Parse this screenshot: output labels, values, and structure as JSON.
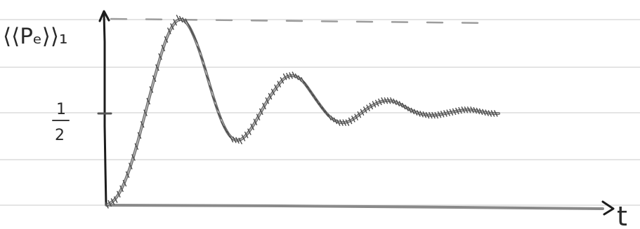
{
  "chart_data": {
    "type": "line",
    "title": "",
    "ylabel": "⟨⟨Pₑ⟩⟩₁",
    "xlabel": "t",
    "ylim": [
      0,
      1.2
    ],
    "xlim": [
      0,
      12
    ],
    "grid": false,
    "y_ticks": [
      {
        "value": 0.5,
        "label": "1/2",
        "numerator": "1",
        "denominator": "2"
      }
    ],
    "reference_lines": [
      {
        "y": 1.0,
        "style": "dashed"
      }
    ],
    "series": [
      {
        "x": [
          0.0,
          0.25,
          0.5,
          0.75,
          1.0,
          1.25,
          1.5,
          1.75,
          2.0,
          2.25,
          2.5,
          2.75,
          3.0,
          3.25,
          3.5,
          3.75,
          4.0,
          4.25,
          4.5,
          4.75,
          5.0,
          5.25,
          5.5,
          5.75,
          6.0,
          6.25,
          6.5,
          6.75,
          7.0,
          7.25,
          7.5,
          7.75,
          8.0,
          8.25,
          8.5,
          8.75,
          9.0,
          9.25,
          9.5,
          9.75,
          10.0,
          10.25,
          10.5,
          10.75,
          11.0
        ],
        "y": [
          0.0,
          0.03,
          0.12,
          0.26,
          0.44,
          0.63,
          0.81,
          0.95,
          1.02,
          1.0,
          0.9,
          0.75,
          0.58,
          0.44,
          0.36,
          0.35,
          0.4,
          0.48,
          0.57,
          0.64,
          0.7,
          0.71,
          0.68,
          0.61,
          0.54,
          0.48,
          0.45,
          0.45,
          0.48,
          0.52,
          0.55,
          0.57,
          0.57,
          0.55,
          0.52,
          0.5,
          0.49,
          0.49,
          0.5,
          0.51,
          0.52,
          0.52,
          0.51,
          0.5,
          0.5
        ]
      }
    ]
  }
}
